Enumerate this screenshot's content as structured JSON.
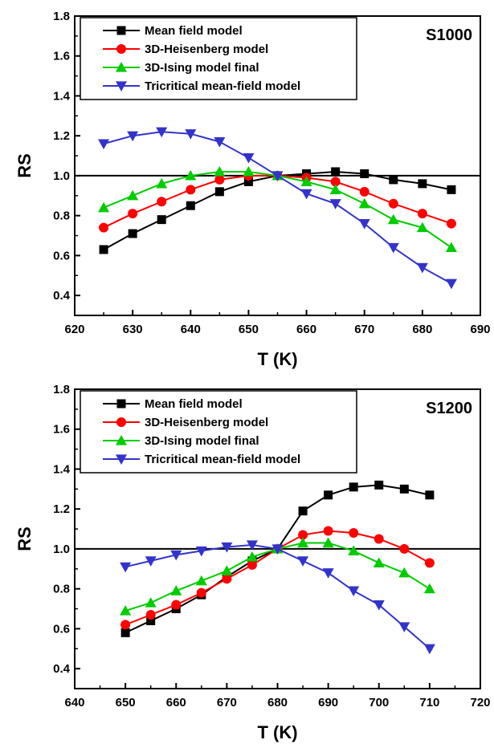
{
  "chart_data": [
    {
      "type": "line",
      "panel_label": "S1000",
      "xlabel": "T (K)",
      "ylabel": "RS",
      "xlim": [
        620,
        690
      ],
      "ylim": [
        0.3,
        1.8
      ],
      "xticks": [
        "620",
        "630",
        "640",
        "650",
        "660",
        "670",
        "680",
        "690"
      ],
      "yticks": [
        "0.4",
        "0.6",
        "0.8",
        "1.0",
        "1.2",
        "1.4",
        "1.6",
        "1.8"
      ],
      "reference_line": 1.0,
      "legend_position": "top-left",
      "x": [
        625,
        630,
        635,
        640,
        645,
        650,
        655,
        660,
        665,
        670,
        675,
        680,
        685
      ],
      "series": [
        {
          "name": "Mean field model",
          "color": "#000000",
          "marker": "square",
          "values": [
            0.63,
            0.71,
            0.78,
            0.85,
            0.92,
            0.97,
            1.0,
            1.01,
            1.02,
            1.01,
            0.98,
            0.96,
            0.93
          ]
        },
        {
          "name": "3D-Heisenberg model",
          "color": "#ff0000",
          "marker": "circle",
          "values": [
            0.74,
            0.81,
            0.87,
            0.93,
            0.98,
            1.0,
            1.0,
            0.99,
            0.97,
            0.92,
            0.86,
            0.81,
            0.76
          ]
        },
        {
          "name": "3D-Ising model final",
          "color": "#00cc00",
          "marker": "triangle-up",
          "values": [
            0.84,
            0.9,
            0.96,
            1.0,
            1.02,
            1.02,
            1.0,
            0.97,
            0.93,
            0.86,
            0.78,
            0.74,
            0.64
          ]
        },
        {
          "name": "Tricritical mean-field model",
          "color": "#3333cc",
          "marker": "triangle-down",
          "values": [
            1.16,
            1.2,
            1.22,
            1.21,
            1.17,
            1.09,
            1.0,
            0.91,
            0.86,
            0.76,
            0.64,
            0.54,
            0.46
          ]
        }
      ]
    },
    {
      "type": "line",
      "panel_label": "S1200",
      "xlabel": "T (K)",
      "ylabel": "RS",
      "xlim": [
        640,
        720
      ],
      "ylim": [
        0.3,
        1.8
      ],
      "xticks": [
        "640",
        "650",
        "660",
        "670",
        "680",
        "690",
        "700",
        "710",
        "720"
      ],
      "yticks": [
        "0.4",
        "0.6",
        "0.8",
        "1.0",
        "1.2",
        "1.4",
        "1.6",
        "1.8"
      ],
      "reference_line": 1.0,
      "legend_position": "top-left",
      "x": [
        650,
        655,
        660,
        665,
        670,
        675,
        680,
        685,
        690,
        695,
        700,
        705,
        710
      ],
      "series": [
        {
          "name": "Mean field model",
          "color": "#000000",
          "marker": "square",
          "values": [
            0.58,
            0.64,
            0.7,
            0.77,
            0.86,
            0.94,
            1.0,
            1.19,
            1.27,
            1.31,
            1.32,
            1.3,
            1.27
          ]
        },
        {
          "name": "3D-Heisenberg model",
          "color": "#ff0000",
          "marker": "circle",
          "values": [
            0.62,
            0.67,
            0.72,
            0.78,
            0.85,
            0.92,
            1.0,
            1.07,
            1.09,
            1.08,
            1.05,
            1.0,
            0.93
          ]
        },
        {
          "name": "3D-Ising model final",
          "color": "#00cc00",
          "marker": "triangle-up",
          "values": [
            0.69,
            0.73,
            0.79,
            0.84,
            0.89,
            0.96,
            1.0,
            1.03,
            1.03,
            0.99,
            0.93,
            0.88,
            0.8
          ]
        },
        {
          "name": "Tricritical mean-field model",
          "color": "#3333cc",
          "marker": "triangle-down",
          "values": [
            0.91,
            0.94,
            0.97,
            0.99,
            1.01,
            1.02,
            1.0,
            0.94,
            0.88,
            0.79,
            0.72,
            0.61,
            0.5
          ]
        }
      ]
    }
  ]
}
